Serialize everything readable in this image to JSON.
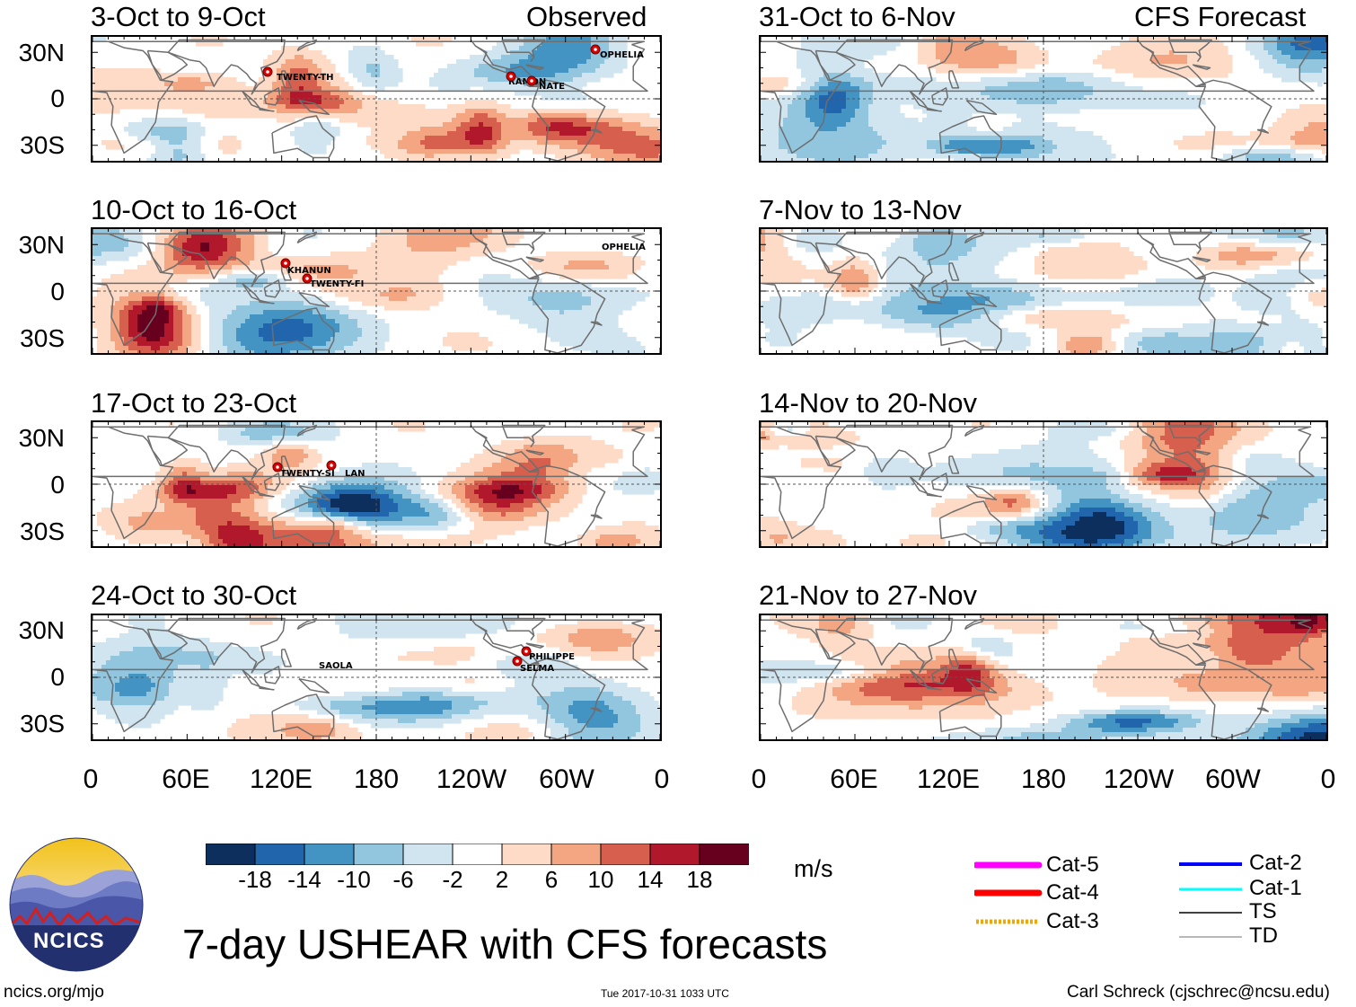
{
  "labels": {
    "observed": "Observed",
    "forecast": "CFS Forecast",
    "main_title": "7-day USHEAR with CFS forecasts",
    "units": "m/s",
    "footer_left": "ncics.org/mjo",
    "footer_center": "Tue 2017-10-31 1033 UTC",
    "footer_right": "Carl Schreck (cjschrec@ncsu.edu)",
    "logo_text": "NCICS"
  },
  "colors": {
    "palette": [
      "#0c2f5e",
      "#2166ac",
      "#4393c3",
      "#92c5de",
      "#d1e5f0",
      "#ffffff",
      "#fddbc7",
      "#f4a582",
      "#d6604d",
      "#b2182b",
      "#67001f"
    ],
    "coast": "#6e6e6e"
  },
  "chart_data": {
    "type": "heatmap",
    "variable": "7-day USHEAR (m/s)",
    "y_ticks": [
      "30N",
      "0",
      "30S"
    ],
    "x_ticks": [
      "0",
      "60E",
      "120E",
      "180",
      "120W",
      "60W",
      "0"
    ],
    "colorbar": {
      "labels": [
        "-18",
        "-14",
        "-10",
        "-6",
        "-2",
        "2",
        "6",
        "10",
        "14",
        "18"
      ]
    },
    "panels": [
      {
        "title": "3-Oct to 9-Oct",
        "type": "Observed",
        "seed": 11,
        "storms": [
          {
            "name": "TWENTY-TH"
          },
          {
            "name": "RAMON"
          },
          {
            "name": "NATE"
          },
          {
            "name": "OPHELIA"
          }
        ]
      },
      {
        "title": "10-Oct to 16-Oct",
        "type": "Observed",
        "seed": 23,
        "storms": [
          {
            "name": "KHANUN"
          },
          {
            "name": "TWENTY-FI"
          },
          {
            "name": "OPHELIA"
          }
        ]
      },
      {
        "title": "17-Oct to 23-Oct",
        "type": "Observed",
        "seed": 37,
        "storms": [
          {
            "name": "TWENTY-SI"
          },
          {
            "name": "LAN"
          }
        ]
      },
      {
        "title": "24-Oct to 30-Oct",
        "type": "Observed",
        "seed": 41,
        "storms": [
          {
            "name": "SAOLA"
          },
          {
            "name": "PHILIPPE"
          },
          {
            "name": "SELMA"
          }
        ]
      },
      {
        "title": "31-Oct to 6-Nov",
        "type": "CFS Forecast",
        "seed": 53,
        "storms": []
      },
      {
        "title": "7-Nov to 13-Nov",
        "type": "CFS Forecast",
        "seed": 67,
        "storms": []
      },
      {
        "title": "14-Nov to 20-Nov",
        "type": "CFS Forecast",
        "seed": 71,
        "storms": []
      },
      {
        "title": "21-Nov to 27-Nov",
        "type": "CFS Forecast",
        "seed": 89,
        "storms": []
      }
    ],
    "legend": [
      {
        "label": "Cat-5",
        "color": "#ff00ff"
      },
      {
        "label": "Cat-4",
        "color": "#ff0000"
      },
      {
        "label": "Cat-3",
        "color": "#f0a800"
      },
      {
        "label": "Cat-2",
        "color": "#0000ff"
      },
      {
        "label": "Cat-1",
        "color": "#00ffff"
      },
      {
        "label": "TS",
        "color": "#404040"
      },
      {
        "label": "TD",
        "color": "#a0a0a0"
      }
    ]
  }
}
